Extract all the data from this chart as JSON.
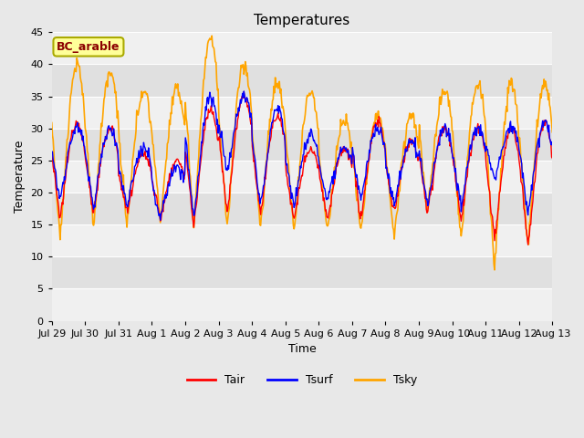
{
  "title": "Temperatures",
  "xlabel": "Time",
  "ylabel": "Temperature",
  "ylim": [
    0,
    45
  ],
  "yticks": [
    0,
    5,
    10,
    15,
    20,
    25,
    30,
    35,
    40,
    45
  ],
  "site_label": "BC_arable",
  "site_label_color": "#8B0000",
  "site_label_bg": "#FFFF99",
  "site_label_border": "#AAAA00",
  "line_colors": {
    "Tair": "#FF0000",
    "Tsurf": "#0000FF",
    "Tsky": "#FFA500"
  },
  "legend_labels": [
    "Tair",
    "Tsurf",
    "Tsky"
  ],
  "fig_bg_color": "#E8E8E8",
  "plot_bg_color": "#DCDCDC",
  "band_color_light": "#F0F0F0",
  "band_color_dark": "#E0E0E0",
  "title_fontsize": 11,
  "axis_fontsize": 9,
  "tick_fontsize": 8,
  "num_days": 15,
  "points_per_day": 48,
  "day_labels": [
    "Jul 29",
    "Jul 30",
    "Jul 31",
    "Aug 1",
    "Aug 2",
    "Aug 3",
    "Aug 4",
    "Aug 5",
    "Aug 6",
    "Aug 7",
    "Aug 8",
    "Aug 9",
    "Aug 10",
    "Aug 11",
    "Aug 12",
    "Aug 13"
  ]
}
